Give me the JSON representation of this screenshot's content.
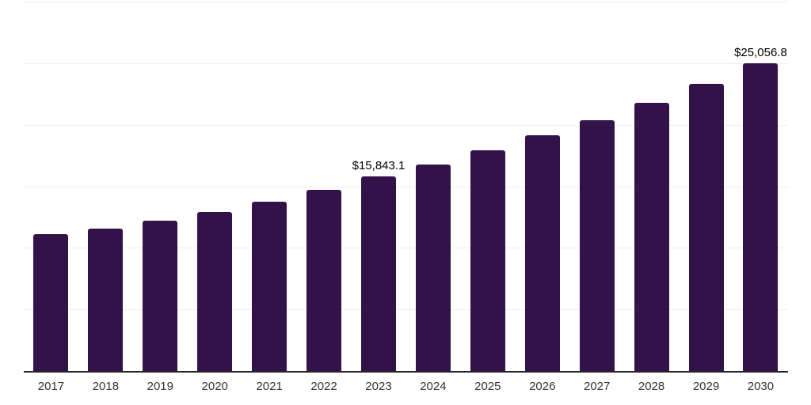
{
  "chart_data": {
    "type": "bar",
    "title": "",
    "xlabel": "",
    "ylabel": "",
    "categories": [
      "2017",
      "2018",
      "2019",
      "2020",
      "2021",
      "2022",
      "2023",
      "2024",
      "2025",
      "2026",
      "2027",
      "2028",
      "2029",
      "2030"
    ],
    "values": [
      11200,
      11650,
      12300,
      13000,
      13820,
      14780,
      15843.1,
      16850,
      17980,
      19190,
      20460,
      21870,
      23400,
      25056.8
    ],
    "bar_labels": {
      "2023": "$15,843.1",
      "2030": "$25,056.8"
    },
    "ylim": [
      0,
      30000
    ],
    "gridline_step": 5000,
    "grid": true,
    "legend": false,
    "colors": {
      "bar": "#331149",
      "gridline": "#f0f0f0",
      "axis_line": "#262626",
      "tick_label": "#333333",
      "value_label": "#000000",
      "background": "#ffffff"
    }
  }
}
